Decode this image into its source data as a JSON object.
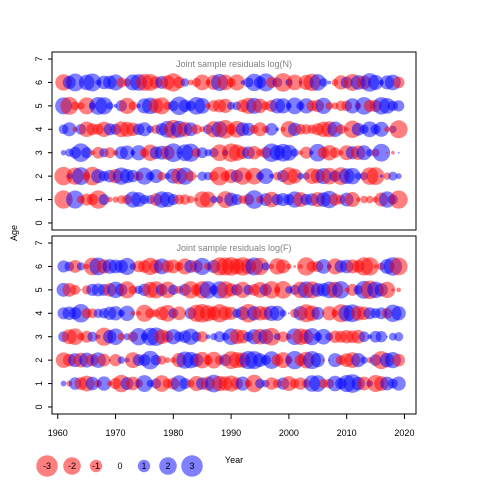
{
  "chart_data": [
    {
      "type": "bubble",
      "title": "Joint sample residuals log(N)",
      "xlabel": "Year",
      "ylabel": "Age",
      "xlim": [
        1959,
        2022
      ],
      "ylim": [
        -0.3,
        7.3
      ],
      "yticks": [
        0,
        1,
        2,
        3,
        4,
        5,
        6,
        7
      ],
      "years": [
        1961,
        2019
      ],
      "ages": [
        1,
        2,
        3,
        4,
        5,
        6
      ],
      "colors": {
        "positive": "#0000ff",
        "negative": "#ff0000"
      },
      "seed": 12345
    },
    {
      "type": "bubble",
      "title": "Joint sample residuals log(F)",
      "xlabel": "Year",
      "ylabel": "Age",
      "xlim": [
        1959,
        2022
      ],
      "ylim": [
        -0.3,
        7.3
      ],
      "yticks": [
        0,
        1,
        2,
        3,
        4,
        5,
        6,
        7
      ],
      "years": [
        1961,
        2019
      ],
      "ages": [
        1,
        2,
        3,
        4,
        5,
        6
      ],
      "colors": {
        "positive": "#0000ff",
        "negative": "#ff0000"
      },
      "seed": 67890
    }
  ],
  "xaxis": {
    "ticks": [
      1960,
      1970,
      1980,
      1990,
      2000,
      2010,
      2020
    ],
    "label": "Year"
  },
  "yaxis_label": "Age",
  "legend": [
    {
      "label": "-3",
      "value": -3
    },
    {
      "label": "-2",
      "value": -2
    },
    {
      "label": "-1",
      "value": -1
    },
    {
      "label": "0",
      "value": 0
    },
    {
      "label": "1",
      "value": 1
    },
    {
      "label": "2",
      "value": 2
    },
    {
      "label": "3",
      "value": 3
    }
  ]
}
